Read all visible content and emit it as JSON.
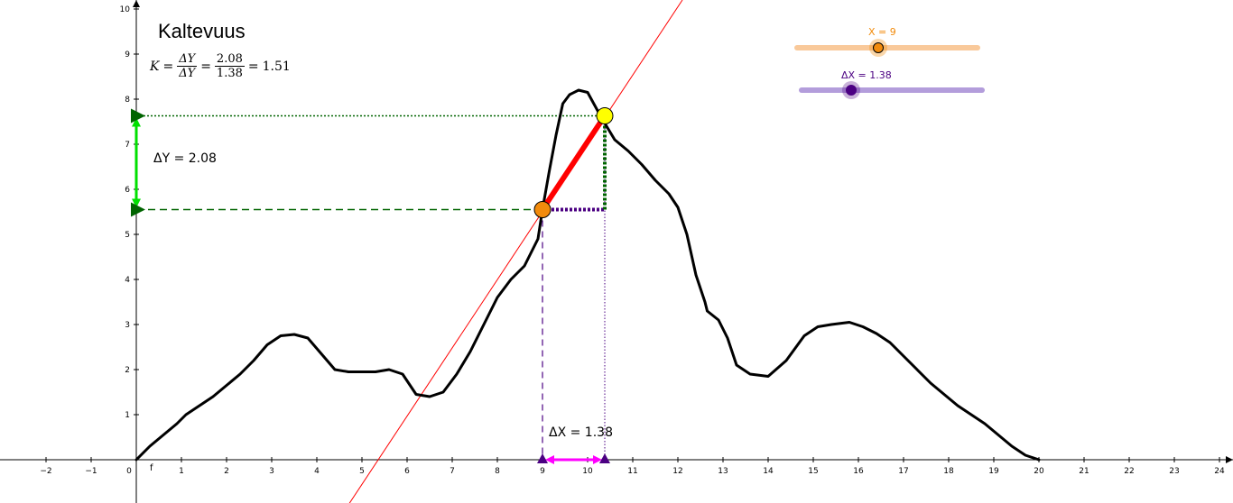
{
  "title": "Kaltevuus",
  "formula": {
    "lhs": "K",
    "frac1_num": "ΔY",
    "frac1_den": "ΔY",
    "frac2_num": "2.08",
    "frac2_den": "1.38",
    "result": "1.51"
  },
  "labels": {
    "delta_y": "ΔY = 2.08",
    "delta_x": "ΔX = 1.38",
    "function_name": "f"
  },
  "sliders": [
    {
      "label": "X = 9",
      "value": 9,
      "min": 0,
      "max": 20,
      "color": "#f28b0c",
      "track_color": "#f9c99a"
    },
    {
      "label": "ΔX = 1.38",
      "value": 1.38,
      "min": 0,
      "max": 5,
      "color": "#4b0082",
      "track_color": "#b39ddb"
    }
  ],
  "colors": {
    "curve": "#000000",
    "tangent": "#ff0000",
    "secant": "#ff0000",
    "point_a": "#f28b0c",
    "point_b": "#ffff00",
    "green": "#006400",
    "bright_green": "#00e000",
    "purple": "#4b0082",
    "magenta": "#ff00ff"
  },
  "chart_data": {
    "type": "line",
    "x_ticks": [
      "−2",
      "−1",
      "0",
      "1",
      "2",
      "3",
      "4",
      "5",
      "6",
      "7",
      "8",
      "9",
      "10",
      "11",
      "12",
      "13",
      "14",
      "15",
      "16",
      "17",
      "18",
      "19",
      "20",
      "21",
      "22",
      "23",
      "24"
    ],
    "y_ticks": [
      "1",
      "2",
      "3",
      "4",
      "5",
      "6",
      "7",
      "8",
      "9",
      "10"
    ],
    "xlim": [
      -3,
      24.5
    ],
    "ylim": [
      -0.9,
      10.2
    ],
    "curve": {
      "name": "f",
      "x": [
        0,
        0.3,
        0.6,
        0.9,
        1.1,
        1.4,
        1.7,
        2.0,
        2.3,
        2.6,
        2.9,
        3.2,
        3.5,
        3.8,
        4.1,
        4.4,
        4.7,
        5.0,
        5.3,
        5.6,
        5.9,
        6.2,
        6.5,
        6.8,
        7.1,
        7.4,
        7.7,
        8.0,
        8.3,
        8.6,
        8.9,
        9.0,
        9.15,
        9.3,
        9.45,
        9.6,
        9.8,
        10.0,
        10.3,
        10.6,
        10.9,
        11.2,
        11.5,
        11.8,
        12.0,
        12.2,
        12.4,
        12.6,
        12.65,
        12.9,
        13.1,
        13.3,
        13.6,
        14.0,
        14.4,
        14.8,
        15.1,
        15.4,
        15.8,
        16.1,
        16.4,
        16.7,
        17.0,
        17.3,
        17.6,
        17.9,
        18.2,
        18.5,
        18.8,
        19.1,
        19.4,
        19.7,
        20.0
      ],
      "y": [
        0,
        0.3,
        0.55,
        0.8,
        1.0,
        1.2,
        1.4,
        1.65,
        1.9,
        2.2,
        2.55,
        2.75,
        2.78,
        2.7,
        2.35,
        2.0,
        1.95,
        1.95,
        1.95,
        2.0,
        1.9,
        1.45,
        1.4,
        1.5,
        1.9,
        2.4,
        3.0,
        3.6,
        4.0,
        4.3,
        4.9,
        5.55,
        6.4,
        7.2,
        7.9,
        8.1,
        8.2,
        8.15,
        7.6,
        7.1,
        6.85,
        6.55,
        6.2,
        5.9,
        5.6,
        5.0,
        4.1,
        3.5,
        3.3,
        3.1,
        2.7,
        2.1,
        1.9,
        1.85,
        2.2,
        2.75,
        2.95,
        3.0,
        3.05,
        2.95,
        2.8,
        2.6,
        2.3,
        2.0,
        1.7,
        1.45,
        1.2,
        1.0,
        0.8,
        0.55,
        0.3,
        0.1,
        0
      ]
    },
    "point_a": {
      "x": 9.0,
      "y": 5.55
    },
    "point_b": {
      "x": 10.38,
      "y": 7.63
    },
    "tangent": {
      "x1": 4.7,
      "y1": -1.0,
      "x2": 12.1,
      "y2": 10.2
    },
    "delta_x": 1.38,
    "delta_y": 2.08,
    "slope": 1.51
  }
}
